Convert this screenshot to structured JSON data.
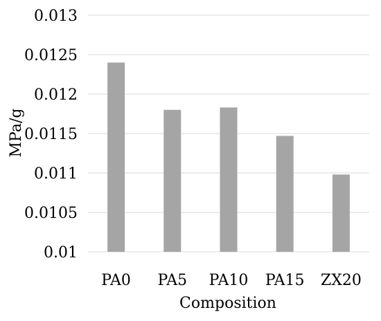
{
  "chart_data": {
    "type": "bar",
    "categories": [
      "PA0",
      "PA5",
      "PA10",
      "PA15",
      "ZX20"
    ],
    "values": [
      0.0124,
      0.0118,
      0.01183,
      0.01147,
      0.01098
    ],
    "title": "",
    "xlabel": "Composition",
    "ylabel": "MPa/g",
    "ylim": [
      0.01,
      0.013
    ],
    "yticks": [
      0.01,
      0.0105,
      0.011,
      0.0115,
      0.012,
      0.0125,
      0.013
    ],
    "ytick_labels": [
      "0.01",
      "0.0105",
      "0.011",
      "0.0115",
      "0.012",
      "0.0125",
      "0.013"
    ],
    "bar_color": "#a5a5a5",
    "grid": true,
    "legend": "none"
  }
}
